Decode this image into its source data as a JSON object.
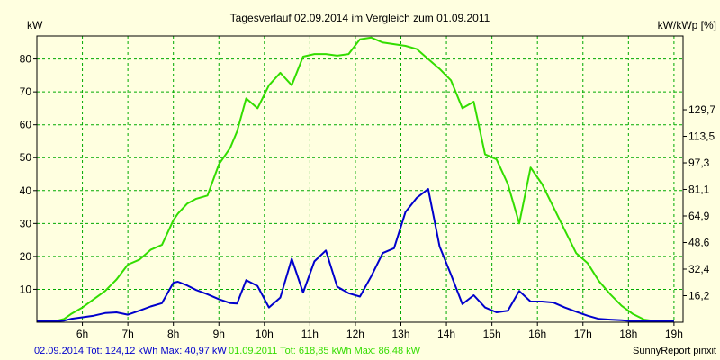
{
  "chart_data": {
    "type": "line",
    "title": "Tagesverlauf 02.09.2014 im Vergleich zum 01.09.2011",
    "ylabel_left": "kW",
    "ylabel_right": "kW/kWp [%]",
    "xlim": [
      5.0,
      19.2
    ],
    "ylim": [
      0,
      87
    ],
    "x_ticks": [
      6,
      7,
      8,
      9,
      10,
      11,
      12,
      13,
      14,
      15,
      16,
      17,
      18,
      19
    ],
    "x_tick_labels": [
      "6h",
      "7h",
      "8h",
      "9h",
      "10h",
      "11h",
      "12h",
      "13h",
      "14h",
      "15h",
      "16h",
      "17h",
      "18h",
      "19h"
    ],
    "y_ticks": [
      10,
      20,
      30,
      40,
      50,
      60,
      70,
      80
    ],
    "y_tick_labels": [
      "10",
      "20",
      "30",
      "40",
      "50",
      "60",
      "70",
      "80"
    ],
    "y_right_ticks": [
      8.07,
      16.14,
      24.21,
      32.28,
      40.35,
      48.42,
      56.49,
      64.56
    ],
    "y_right_tick_labels": [
      "16,2",
      "32,4",
      "48,6",
      "64,9",
      "81,1",
      "97,3",
      "113,5",
      "129,7"
    ],
    "grid": true,
    "background": "#ffffe0",
    "plot_background": "#ffffe0",
    "grid_color": "#00aa00",
    "series": [
      {
        "name": "02.09.2014",
        "color": "#0000cc",
        "x": [
          5.0,
          5.4,
          5.6,
          5.75,
          6.0,
          6.25,
          6.5,
          6.75,
          7.0,
          7.25,
          7.5,
          7.75,
          8.0,
          8.1,
          8.3,
          8.5,
          8.75,
          9.0,
          9.25,
          9.4,
          9.6,
          9.85,
          10.1,
          10.35,
          10.6,
          10.85,
          11.1,
          11.35,
          11.6,
          11.85,
          12.1,
          12.35,
          12.6,
          12.85,
          13.1,
          13.35,
          13.6,
          13.85,
          14.1,
          14.35,
          14.6,
          14.85,
          15.1,
          15.35,
          15.6,
          15.85,
          16.1,
          16.35,
          16.6,
          16.85,
          17.1,
          17.35,
          17.6,
          17.85,
          18.1,
          18.35,
          18.6,
          19.0
        ],
        "y": [
          0.3,
          0.3,
          0.5,
          1.0,
          1.5,
          2.0,
          2.8,
          3.0,
          2.3,
          3.5,
          4.8,
          5.8,
          12.0,
          12.3,
          11.2,
          9.8,
          8.5,
          7.0,
          5.8,
          5.7,
          12.8,
          11.0,
          4.5,
          7.5,
          19.3,
          9.0,
          18.5,
          21.8,
          10.8,
          8.8,
          7.8,
          14.0,
          21.0,
          22.5,
          33.5,
          37.8,
          40.5,
          23.0,
          14.5,
          5.5,
          8.2,
          4.5,
          3.0,
          3.5,
          9.5,
          6.3,
          6.3,
          6.0,
          4.5,
          3.2,
          2.0,
          1.0,
          0.8,
          0.6,
          0.3,
          0.3,
          0.3,
          0.3
        ]
      },
      {
        "name": "01.09.2011",
        "color": "#33dd00",
        "x": [
          5.0,
          5.4,
          5.6,
          5.75,
          6.0,
          6.25,
          6.5,
          6.75,
          7.0,
          7.25,
          7.5,
          7.75,
          8.0,
          8.1,
          8.3,
          8.5,
          8.75,
          9.0,
          9.25,
          9.4,
          9.6,
          9.85,
          10.1,
          10.35,
          10.6,
          10.85,
          11.1,
          11.35,
          11.6,
          11.85,
          12.1,
          12.35,
          12.6,
          12.85,
          13.1,
          13.35,
          13.6,
          13.85,
          14.1,
          14.35,
          14.6,
          14.85,
          15.1,
          15.35,
          15.6,
          15.85,
          16.1,
          16.35,
          16.6,
          16.85,
          17.1,
          17.35,
          17.6,
          17.85,
          18.1,
          18.35,
          18.6,
          19.0
        ],
        "y": [
          0.3,
          0.3,
          1.0,
          2.5,
          4.5,
          7.0,
          9.5,
          13.0,
          17.5,
          19.0,
          22.0,
          23.5,
          31.0,
          33.0,
          36.0,
          37.5,
          38.5,
          48.0,
          53.0,
          58.0,
          68.0,
          65.0,
          72.0,
          75.8,
          72.0,
          80.7,
          81.5,
          81.5,
          81.0,
          81.5,
          86.0,
          86.5,
          85.0,
          84.5,
          84.0,
          83.0,
          80.0,
          77.0,
          73.5,
          65.0,
          67.0,
          51.0,
          49.5,
          42.0,
          30.0,
          47.0,
          42.0,
          35.0,
          28.0,
          21.0,
          18.0,
          12.5,
          8.5,
          5.0,
          2.5,
          0.8,
          0.3,
          0.3
        ]
      }
    ]
  },
  "footer": {
    "series1_label": "02.09.2014 Tot: 124,12 kWh Max: 40,97 kW",
    "series2_label": "01.09.2011 Tot: 618,85 kWh Max: 86,48 kW",
    "credit": "SunnyReport pinxit"
  }
}
